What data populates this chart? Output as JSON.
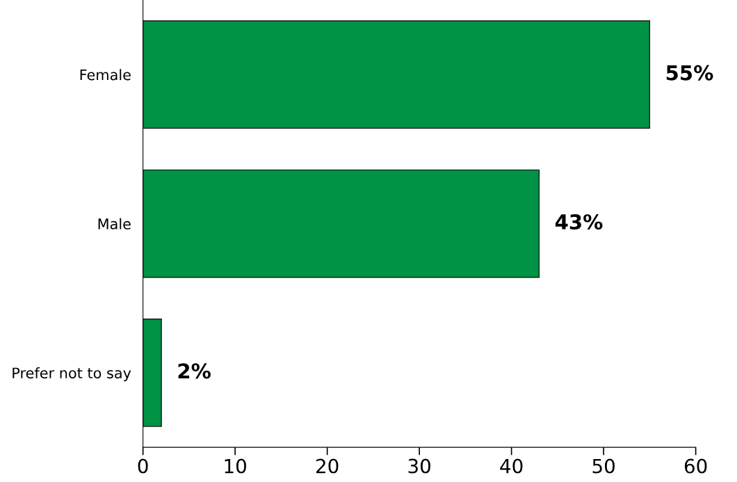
{
  "chart_data": {
    "type": "bar",
    "orientation": "horizontal",
    "categories": [
      "Female",
      "Male",
      "Prefer not to say"
    ],
    "values": [
      55,
      43,
      2
    ],
    "value_labels": [
      "55%",
      "43%",
      "2%"
    ],
    "color": "#009245",
    "xlim": [
      0,
      60
    ],
    "xticks": [
      0,
      10,
      20,
      30,
      40,
      50,
      60
    ],
    "grid": false
  }
}
